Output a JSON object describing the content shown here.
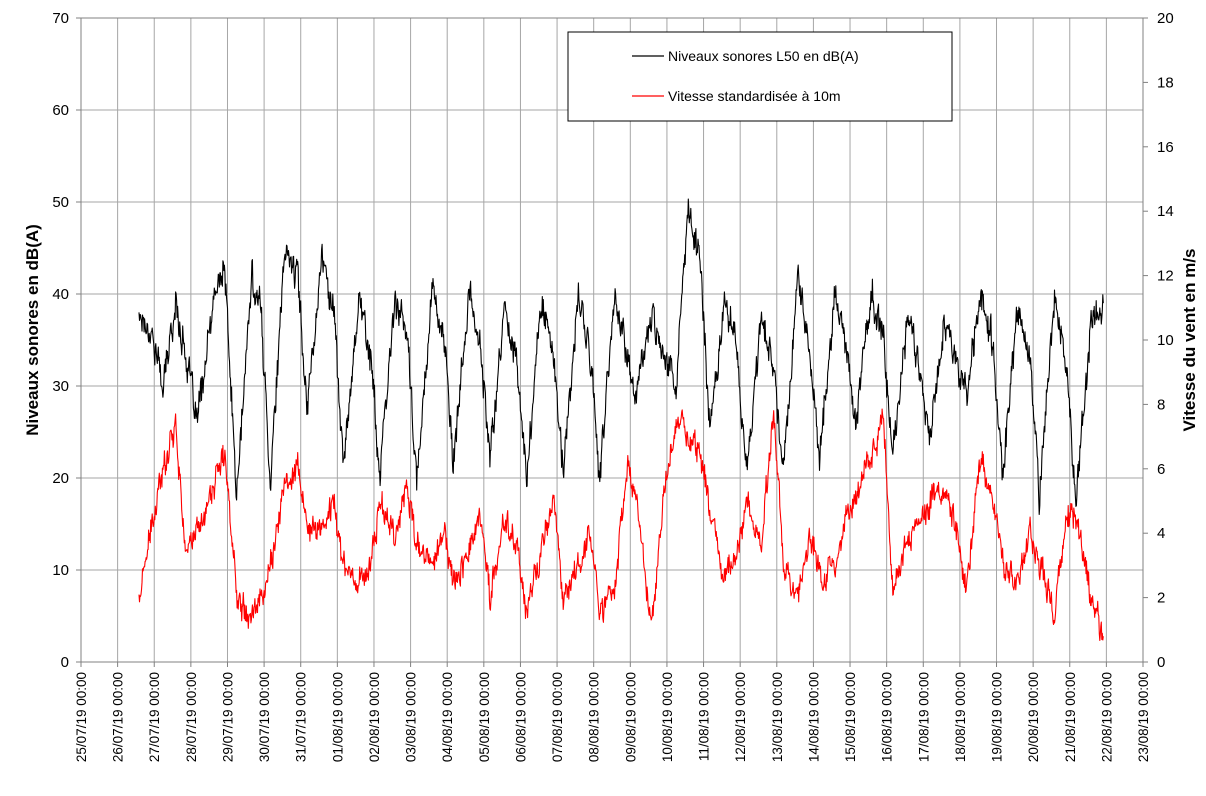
{
  "chart_data": {
    "type": "line",
    "title": "",
    "ylabel_left": "Niveaux sonores en dB(A)",
    "ylabel_right": "Vitesse du vent en m/s",
    "xlabel": "",
    "ylim_left": [
      0,
      70
    ],
    "ylim_right": [
      0,
      20
    ],
    "yticks_left": [
      "0",
      "10",
      "20",
      "30",
      "40",
      "50",
      "60",
      "70"
    ],
    "yticks_right": [
      "0",
      "2",
      "4",
      "6",
      "8",
      "10",
      "12",
      "14",
      "16",
      "18",
      "20"
    ],
    "x_range": [
      "25/07/19 00:00",
      "23/08/19 00:00"
    ],
    "x_ticks": [
      "25/07/19 00:00",
      "26/07/19 00:00",
      "27/07/19 00:00",
      "28/07/19 00:00",
      "29/07/19 00:00",
      "30/07/19 00:00",
      "31/07/19 00:00",
      "01/08/19 00:00",
      "02/08/19 00:00",
      "03/08/19 00:00",
      "04/08/19 00:00",
      "05/08/19 00:00",
      "06/08/19 00:00",
      "07/08/19 00:00",
      "08/08/19 00:00",
      "09/08/19 00:00",
      "10/08/19 00:00",
      "11/08/19 00:00",
      "12/08/19 00:00",
      "13/08/19 00:00",
      "14/08/19 00:00",
      "15/08/19 00:00",
      "16/08/19 00:00",
      "17/08/19 00:00",
      "18/08/19 00:00",
      "19/08/19 00:00",
      "20/08/19 00:00",
      "21/08/19 00:00",
      "22/08/19 00:00",
      "23/08/19 00:00"
    ],
    "grid": true,
    "legend_position": "top-center",
    "series": [
      {
        "name": "Niveaux sonores L50 en dB(A)",
        "axis": "left",
        "color": "#000000",
        "points": [
          [
            "26/07/19 14:00",
            38
          ],
          [
            "26/07/19 22:00",
            36
          ],
          [
            "27/07/19 06:00",
            30
          ],
          [
            "27/07/19 14:00",
            39
          ],
          [
            "27/07/19 20:00",
            34
          ],
          [
            "28/07/19 04:00",
            26
          ],
          [
            "28/07/19 16:00",
            40
          ],
          [
            "28/07/19 22:00",
            43
          ],
          [
            "29/07/19 06:00",
            18
          ],
          [
            "29/07/19 16:00",
            42
          ],
          [
            "29/07/19 22:00",
            38
          ],
          [
            "30/07/19 04:00",
            20
          ],
          [
            "30/07/19 14:00",
            45
          ],
          [
            "30/07/19 22:00",
            42
          ],
          [
            "31/07/19 04:00",
            28
          ],
          [
            "31/07/19 14:00",
            44
          ],
          [
            "31/07/19 22:00",
            38
          ],
          [
            "01/08/19 04:00",
            21
          ],
          [
            "01/08/19 14:00",
            40
          ],
          [
            "01/08/19 22:00",
            33
          ],
          [
            "02/08/19 04:00",
            20
          ],
          [
            "02/08/19 14:00",
            40
          ],
          [
            "02/08/19 22:00",
            35
          ],
          [
            "03/08/19 04:00",
            19
          ],
          [
            "03/08/19 14:00",
            41
          ],
          [
            "03/08/19 22:00",
            35
          ],
          [
            "04/08/19 04:00",
            21
          ],
          [
            "04/08/19 14:00",
            40
          ],
          [
            "04/08/19 22:00",
            34
          ],
          [
            "05/08/19 04:00",
            22
          ],
          [
            "05/08/19 14:00",
            39
          ],
          [
            "05/08/19 22:00",
            32
          ],
          [
            "06/08/19 04:00",
            20
          ],
          [
            "06/08/19 14:00",
            40
          ],
          [
            "06/08/19 22:00",
            33
          ],
          [
            "07/08/19 04:00",
            20
          ],
          [
            "07/08/19 14:00",
            40
          ],
          [
            "07/08/19 22:00",
            33
          ],
          [
            "08/08/19 04:00",
            20
          ],
          [
            "08/08/19 14:00",
            40
          ],
          [
            "08/08/19 22:00",
            33
          ],
          [
            "09/08/19 04:00",
            29
          ],
          [
            "09/08/19 14:00",
            38
          ],
          [
            "09/08/19 22:00",
            34
          ],
          [
            "10/08/19 06:00",
            30
          ],
          [
            "10/08/19 14:00",
            49
          ],
          [
            "10/08/19 22:00",
            44
          ],
          [
            "11/08/19 04:00",
            25
          ],
          [
            "11/08/19 14:00",
            40
          ],
          [
            "11/08/19 22:00",
            34
          ],
          [
            "12/08/19 04:00",
            20
          ],
          [
            "12/08/19 14:00",
            38
          ],
          [
            "12/08/19 22:00",
            32
          ],
          [
            "13/08/19 04:00",
            21
          ],
          [
            "13/08/19 14:00",
            42
          ],
          [
            "13/08/19 22:00",
            33
          ],
          [
            "14/08/19 04:00",
            22
          ],
          [
            "14/08/19 14:00",
            40
          ],
          [
            "14/08/19 22:00",
            34
          ],
          [
            "15/08/19 04:00",
            26
          ],
          [
            "15/08/19 14:00",
            40
          ],
          [
            "15/08/19 22:00",
            35
          ],
          [
            "16/08/19 04:00",
            22
          ],
          [
            "16/08/19 14:00",
            38
          ],
          [
            "16/08/19 22:00",
            32
          ],
          [
            "17/08/19 04:00",
            24
          ],
          [
            "17/08/19 14:00",
            38
          ],
          [
            "17/08/19 22:00",
            32
          ],
          [
            "18/08/19 04:00",
            29
          ],
          [
            "18/08/19 14:00",
            40
          ],
          [
            "18/08/19 22:00",
            34
          ],
          [
            "19/08/19 04:00",
            20
          ],
          [
            "19/08/19 14:00",
            38
          ],
          [
            "19/08/19 22:00",
            33
          ],
          [
            "20/08/19 04:00",
            18
          ],
          [
            "20/08/19 14:00",
            40
          ],
          [
            "20/08/19 22:00",
            32
          ],
          [
            "21/08/19 04:00",
            18
          ],
          [
            "21/08/19 14:00",
            37
          ],
          [
            "21/08/19 22:00",
            39
          ]
        ]
      },
      {
        "name": "Vitesse standardisée à 10m",
        "axis": "right",
        "color": "#ff0000",
        "points": [
          [
            "26/07/19 14:00",
            2.0
          ],
          [
            "26/07/19 22:00",
            4.0
          ],
          [
            "27/07/19 06:00",
            6.0
          ],
          [
            "27/07/19 14:00",
            7.6
          ],
          [
            "27/07/19 20:00",
            3.5
          ],
          [
            "28/07/19 04:00",
            4.0
          ],
          [
            "28/07/19 16:00",
            5.6
          ],
          [
            "28/07/19 22:00",
            6.5
          ],
          [
            "29/07/19 06:00",
            2.2
          ],
          [
            "29/07/19 16:00",
            1.5
          ],
          [
            "29/07/19 22:00",
            2.0
          ],
          [
            "30/07/19 04:00",
            3.0
          ],
          [
            "30/07/19 14:00",
            5.5
          ],
          [
            "30/07/19 22:00",
            6.2
          ],
          [
            "31/07/19 04:00",
            4.0
          ],
          [
            "31/07/19 14:00",
            4.2
          ],
          [
            "31/07/19 22:00",
            5.0
          ],
          [
            "01/08/19 04:00",
            3.0
          ],
          [
            "01/08/19 14:00",
            2.5
          ],
          [
            "01/08/19 22:00",
            3.0
          ],
          [
            "02/08/19 04:00",
            5.0
          ],
          [
            "02/08/19 14:00",
            4.0
          ],
          [
            "02/08/19 22:00",
            5.5
          ],
          [
            "03/08/19 04:00",
            3.5
          ],
          [
            "03/08/19 14:00",
            3.0
          ],
          [
            "03/08/19 22:00",
            4.0
          ],
          [
            "04/08/19 04:00",
            2.5
          ],
          [
            "04/08/19 14:00",
            3.5
          ],
          [
            "04/08/19 22:00",
            4.5
          ],
          [
            "05/08/19 04:00",
            2.0
          ],
          [
            "05/08/19 14:00",
            4.5
          ],
          [
            "05/08/19 22:00",
            3.5
          ],
          [
            "06/08/19 04:00",
            1.5
          ],
          [
            "06/08/19 14:00",
            3.5
          ],
          [
            "06/08/19 22:00",
            5.0
          ],
          [
            "07/08/19 04:00",
            2.0
          ],
          [
            "07/08/19 14:00",
            3.0
          ],
          [
            "07/08/19 22:00",
            4.0
          ],
          [
            "08/08/19 04:00",
            1.5
          ],
          [
            "08/08/19 14:00",
            2.5
          ],
          [
            "08/08/19 22:00",
            6.0
          ],
          [
            "09/08/19 04:00",
            5.0
          ],
          [
            "09/08/19 14:00",
            1.0
          ],
          [
            "09/08/19 22:00",
            5.0
          ],
          [
            "10/08/19 06:00",
            7.5
          ],
          [
            "10/08/19 14:00",
            7.0
          ],
          [
            "10/08/19 22:00",
            6.5
          ],
          [
            "11/08/19 04:00",
            5.0
          ],
          [
            "11/08/19 14:00",
            2.5
          ],
          [
            "11/08/19 22:00",
            3.5
          ],
          [
            "12/08/19 04:00",
            5.0
          ],
          [
            "12/08/19 14:00",
            3.5
          ],
          [
            "12/08/19 22:00",
            8.0
          ],
          [
            "13/08/19 04:00",
            3.0
          ],
          [
            "13/08/19 14:00",
            2.0
          ],
          [
            "13/08/19 22:00",
            4.0
          ],
          [
            "14/08/19 04:00",
            2.5
          ],
          [
            "14/08/19 14:00",
            3.0
          ],
          [
            "14/08/19 22:00",
            4.5
          ],
          [
            "15/08/19 04:00",
            5.0
          ],
          [
            "15/08/19 14:00",
            6.5
          ],
          [
            "15/08/19 22:00",
            7.5
          ],
          [
            "16/08/19 04:00",
            2.0
          ],
          [
            "16/08/19 14:00",
            4.0
          ],
          [
            "16/08/19 22:00",
            4.5
          ],
          [
            "17/08/19 04:00",
            5.0
          ],
          [
            "17/08/19 14:00",
            5.5
          ],
          [
            "17/08/19 22:00",
            4.0
          ],
          [
            "18/08/19 04:00",
            2.0
          ],
          [
            "18/08/19 14:00",
            6.5
          ],
          [
            "18/08/19 22:00",
            5.0
          ],
          [
            "19/08/19 04:00",
            3.0
          ],
          [
            "19/08/19 14:00",
            2.5
          ],
          [
            "19/08/19 22:00",
            4.0
          ],
          [
            "20/08/19 04:00",
            3.0
          ],
          [
            "20/08/19 14:00",
            1.5
          ],
          [
            "20/08/19 22:00",
            4.5
          ],
          [
            "21/08/19 04:00",
            4.5
          ],
          [
            "21/08/19 14:00",
            2.0
          ],
          [
            "21/08/19 22:00",
            0.8
          ]
        ]
      }
    ]
  }
}
